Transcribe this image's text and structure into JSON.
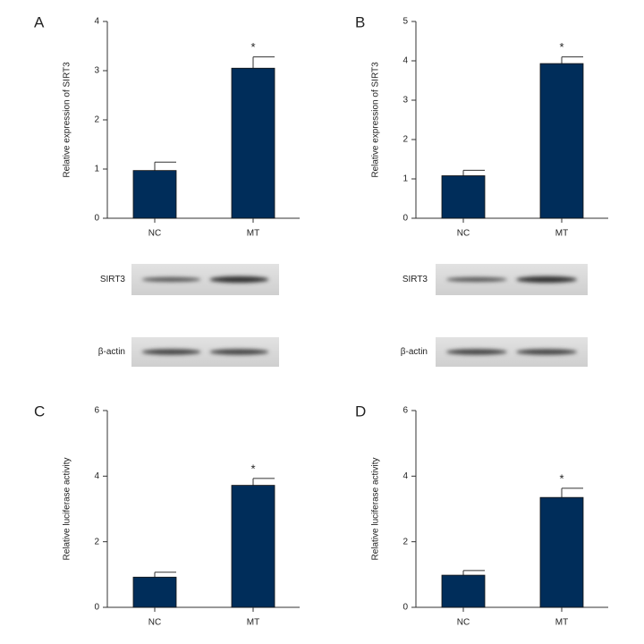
{
  "chart_data": [
    {
      "type": "bar",
      "panel": "A",
      "y_label": "Relative expression of SIRT3",
      "categories": [
        "NC",
        "MT"
      ],
      "values": [
        0.97,
        3.05
      ],
      "errors": [
        0.17,
        0.23
      ],
      "significance": [
        null,
        "*"
      ],
      "color": "#002d5a",
      "ylim": [
        0,
        4
      ],
      "yticks": [
        0,
        1,
        2,
        3,
        4
      ]
    },
    {
      "type": "bar",
      "panel": "B",
      "y_label": "Relative expression of SIRT3",
      "categories": [
        "NC",
        "MT"
      ],
      "values": [
        1.08,
        3.93
      ],
      "errors": [
        0.14,
        0.17
      ],
      "significance": [
        null,
        "*"
      ],
      "color": "#002d5a",
      "ylim": [
        0,
        5
      ],
      "yticks": [
        0,
        1,
        2,
        3,
        4,
        5
      ]
    },
    {
      "type": "bar",
      "panel": "C",
      "y_label": "Relative luciferase activity",
      "categories": [
        "NC",
        "MT"
      ],
      "values": [
        0.92,
        3.72
      ],
      "errors": [
        0.15,
        0.21
      ],
      "significance": [
        null,
        "*"
      ],
      "color": "#002d5a",
      "ylim": [
        0,
        6
      ],
      "yticks": [
        0,
        2,
        4,
        6
      ]
    },
    {
      "type": "bar",
      "panel": "D",
      "y_label": "Relative luciferase activity",
      "categories": [
        "NC",
        "MT"
      ],
      "values": [
        0.98,
        3.35
      ],
      "errors": [
        0.14,
        0.28
      ],
      "significance": [
        null,
        "*"
      ],
      "color": "#002d5a",
      "ylim": [
        0,
        6
      ],
      "yticks": [
        0,
        2,
        4,
        6
      ]
    }
  ],
  "blots": [
    {
      "labels": [
        "SIRT3",
        "β-actin"
      ]
    },
    {
      "labels": [
        "SIRT3",
        "β-actin"
      ]
    }
  ]
}
